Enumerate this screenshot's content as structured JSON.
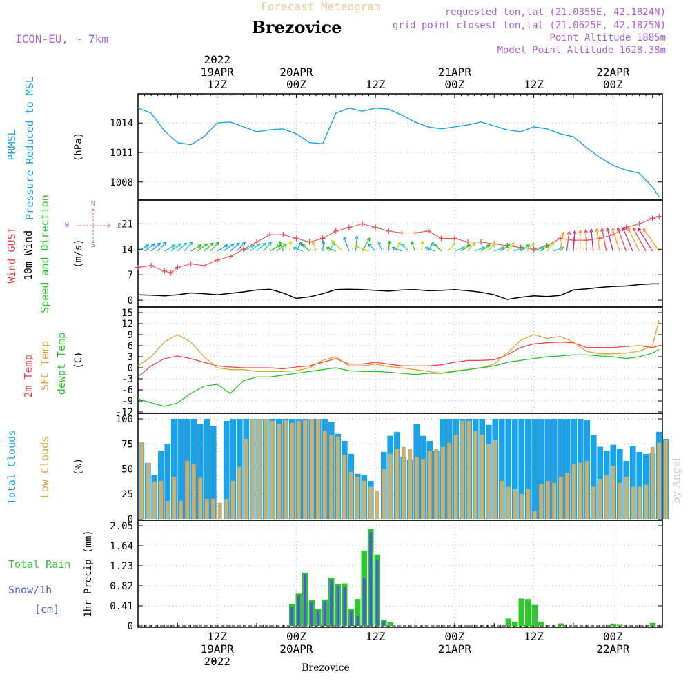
{
  "header": {
    "forecast_label": "Forecast Meteogram",
    "station": "Brezovice",
    "model": "ICON-EU, ~ 7km",
    "requested": "requested lon,lat (21.0355E, 42.1824N)",
    "gridpoint": "grid point closest lon,lat (21.0625E, 42.1875N)",
    "point_altitude": "Point Altitude 1885m",
    "model_altitude": "Model Point Altitude 1628.38m",
    "footer": "Brezovice",
    "watermark": "by Angel"
  },
  "time_axis": {
    "top_year": "2022",
    "top": [
      {
        "t": 12,
        "lines": [
          "19APR",
          "12Z"
        ]
      },
      {
        "t": 24,
        "lines": [
          "20APR",
          "00Z"
        ]
      },
      {
        "t": 36,
        "lines": [
          "12Z"
        ]
      },
      {
        "t": 48,
        "lines": [
          "21APR",
          "00Z"
        ]
      },
      {
        "t": 60,
        "lines": [
          "12Z"
        ]
      },
      {
        "t": 72,
        "lines": [
          "22APR",
          "00Z"
        ]
      }
    ],
    "bottom": [
      {
        "t": 12,
        "lines": [
          "12Z",
          "19APR",
          "2022"
        ]
      },
      {
        "t": 24,
        "lines": [
          "00Z",
          "20APR"
        ]
      },
      {
        "t": 36,
        "lines": [
          "12Z"
        ]
      },
      {
        "t": 48,
        "lines": [
          "00Z",
          "21APR"
        ]
      },
      {
        "t": 60,
        "lines": [
          "12Z"
        ]
      },
      {
        "t": 72,
        "lines": [
          "00Z",
          "22APR"
        ]
      }
    ]
  },
  "colors": {
    "pressure": "#1aa3ea",
    "gust": "#f04848",
    "wind": "#000000",
    "temp": "#f04848",
    "sfc": "#e0a33a",
    "dew": "#27c627",
    "total_clouds": "#1aa3ea",
    "low_clouds": "#c9b070",
    "rain": "#2ec82e",
    "snow": "#4a5ae0",
    "dir_label": "#b060d0"
  },
  "chart_data": [
    {
      "type": "line",
      "labels": [
        "PRMSL",
        "Pressure Reduced to MSL"
      ],
      "ylabel": "(hPa)",
      "yticks": [
        1008,
        1011,
        1014
      ],
      "ylim": [
        1006.3,
        1016.4
      ],
      "series": [
        {
          "x": [
            0,
            2,
            4,
            6,
            8,
            10,
            12,
            14,
            16,
            18,
            20,
            22,
            24,
            26,
            28,
            30,
            32,
            34,
            36,
            38,
            40,
            42,
            44,
            46,
            48,
            50,
            52,
            54,
            56,
            58,
            60,
            62,
            64,
            66,
            68,
            70,
            72,
            74,
            76,
            78,
            79
          ],
          "values": [
            1015.5,
            1015.0,
            1013.2,
            1012.0,
            1011.8,
            1012.6,
            1014.0,
            1014.1,
            1013.6,
            1013.1,
            1013.3,
            1013.4,
            1012.9,
            1012.0,
            1011.9,
            1015.0,
            1015.5,
            1015.2,
            1015.5,
            1015.4,
            1014.8,
            1014.1,
            1013.6,
            1013.4,
            1013.6,
            1013.8,
            1014.1,
            1013.7,
            1013.3,
            1013.1,
            1013.6,
            1013.4,
            1012.9,
            1012.6,
            1011.5,
            1010.5,
            1009.7,
            1009.2,
            1008.9,
            1007.5,
            1006.5
          ]
        }
      ]
    },
    {
      "type": "line",
      "labels": [
        "Wind GUST",
        "10m Wind",
        "Speed and Direction"
      ],
      "ylabel": "(m/s)",
      "yticks": [
        0,
        7,
        14,
        21
      ],
      "ylim": [
        -1.5,
        26
      ],
      "direction_key": {
        "n": "N",
        "s": "S",
        "e": "E",
        "w": "W"
      },
      "gust": {
        "x": [
          0,
          2,
          4,
          5,
          6,
          8,
          10,
          12,
          14,
          16,
          18,
          20,
          22,
          24,
          26,
          28,
          30,
          32,
          34,
          36,
          38,
          40,
          42,
          44,
          46,
          48,
          50,
          52,
          54,
          56,
          58,
          60,
          62,
          64,
          66,
          68,
          70,
          72,
          74,
          76,
          78,
          79
        ],
        "values": [
          9,
          9.5,
          8,
          7.5,
          9,
          10,
          9.5,
          11,
          12,
          14,
          16,
          18,
          18,
          17,
          16,
          17,
          19,
          20,
          21,
          20,
          19,
          18.5,
          18.5,
          19,
          17,
          17,
          16,
          16,
          15.5,
          15,
          14.5,
          14,
          15,
          17,
          16.5,
          16.5,
          17,
          18,
          20,
          21,
          22.5,
          23
        ]
      },
      "wind": {
        "x": [
          0,
          2,
          4,
          6,
          8,
          10,
          12,
          14,
          16,
          18,
          20,
          22,
          24,
          26,
          28,
          30,
          32,
          34,
          36,
          38,
          40,
          42,
          44,
          46,
          48,
          50,
          52,
          54,
          56,
          58,
          60,
          62,
          64,
          66,
          68,
          70,
          72,
          74,
          76,
          78,
          79
        ],
        "values": [
          1.5,
          1.4,
          1.2,
          1.5,
          2.0,
          1.8,
          1.5,
          1.9,
          2.3,
          2.8,
          3.0,
          2.0,
          0.5,
          0.9,
          1.8,
          2.9,
          3.0,
          2.9,
          2.7,
          2.5,
          2.8,
          2.9,
          2.6,
          2.7,
          2.9,
          2.6,
          2.2,
          1.5,
          0.2,
          0.8,
          1.2,
          1.0,
          1.3,
          2.8,
          3.1,
          3.5,
          3.8,
          3.9,
          4.3,
          4.5,
          4.5
        ]
      }
    },
    {
      "type": "line",
      "labels": [
        "2m Temp",
        "SFC Temp",
        "dewpt Temp"
      ],
      "ylabel": "(C)",
      "yticks": [
        -12,
        -9,
        -6,
        -3,
        0,
        3,
        6,
        9,
        12,
        15
      ],
      "ylim": [
        -12,
        15
      ],
      "series": [
        {
          "name": "2m Temp",
          "x": [
            0,
            2,
            4,
            6,
            8,
            10,
            12,
            14,
            16,
            18,
            20,
            22,
            24,
            26,
            28,
            30,
            32,
            34,
            36,
            38,
            40,
            42,
            44,
            46,
            48,
            50,
            52,
            54,
            56,
            58,
            60,
            62,
            64,
            66,
            68,
            70,
            72,
            74,
            76,
            78,
            79
          ],
          "values": [
            -2.5,
            0.5,
            2.5,
            3.2,
            2.5,
            1.5,
            0.5,
            0.2,
            0,
            0,
            0,
            -0.3,
            0.2,
            0.5,
            1.5,
            2.5,
            1.0,
            1.0,
            1.5,
            1.0,
            0.5,
            0.5,
            0.5,
            0.8,
            1.5,
            2.0,
            2.0,
            2.2,
            3.5,
            5.5,
            6.5,
            6.8,
            7.0,
            6.8,
            5.5,
            5.5,
            5.5,
            5.8,
            6.0,
            5.5,
            6.0
          ]
        },
        {
          "name": "SFC Temp",
          "x": [
            0,
            2,
            4,
            6,
            8,
            10,
            12,
            14,
            16,
            18,
            20,
            22,
            24,
            26,
            28,
            30,
            32,
            34,
            36,
            38,
            40,
            42,
            44,
            46,
            48,
            50,
            52,
            54,
            56,
            58,
            60,
            62,
            64,
            66,
            68,
            70,
            72,
            74,
            76,
            78,
            79
          ],
          "values": [
            0.5,
            3,
            7,
            9,
            7,
            3,
            0,
            -0.5,
            -0.5,
            -1,
            -1,
            -1,
            -0.8,
            0,
            2.0,
            3.0,
            0.5,
            0.5,
            1.0,
            0.3,
            0,
            -0.5,
            -1,
            -1.5,
            -0.8,
            -0.5,
            0,
            1,
            4,
            7.5,
            9,
            8,
            8.5,
            7,
            4.5,
            3.8,
            3.8,
            4,
            4.5,
            6,
            13
          ]
        },
        {
          "name": "dewpt Temp",
          "x": [
            0,
            2,
            4,
            6,
            8,
            10,
            12,
            14,
            16,
            18,
            20,
            22,
            24,
            26,
            28,
            30,
            32,
            34,
            36,
            38,
            40,
            42,
            44,
            46,
            48,
            50,
            52,
            54,
            56,
            58,
            60,
            62,
            64,
            66,
            68,
            70,
            72,
            74,
            76,
            78,
            79
          ],
          "values": [
            -8.5,
            -9.5,
            -10.5,
            -9.5,
            -7,
            -5,
            -4.5,
            -7,
            -3.5,
            -2.5,
            -2.5,
            -2,
            -1.5,
            -1,
            -0.5,
            0,
            -0.8,
            -1,
            -1,
            -1.2,
            -1.5,
            -1.8,
            -1.5,
            -1.5,
            -1,
            -0.5,
            0,
            0.5,
            1.5,
            2.0,
            2.5,
            3.0,
            3.2,
            3.5,
            3.5,
            3.2,
            3.0,
            2.5,
            3.0,
            4.0,
            5.0
          ]
        }
      ]
    },
    {
      "type": "bar",
      "labels": [
        "Total Clouds",
        "Low Clouds"
      ],
      "ylabel": "(%)",
      "yticks": [
        0,
        25,
        50,
        75,
        100
      ],
      "ylim": [
        0,
        100
      ],
      "total": [
        77,
        56,
        44,
        68,
        75,
        100,
        100,
        100,
        100,
        95,
        100,
        93,
        0,
        98,
        100,
        100,
        100,
        100,
        100,
        100,
        100,
        100,
        100,
        100,
        100,
        100,
        100,
        100,
        100,
        97,
        85,
        78,
        65,
        45,
        44,
        38,
        0,
        67,
        83,
        87,
        62,
        59,
        95,
        83,
        78,
        68,
        100,
        100,
        100,
        100,
        100,
        100,
        100,
        94,
        100,
        100,
        100,
        100,
        100,
        100,
        100,
        100,
        100,
        100,
        100,
        100,
        100,
        100,
        99,
        84,
        72,
        68,
        74,
        70,
        58,
        73,
        67,
        65,
        66,
        87,
        80
      ],
      "low": [
        77,
        56,
        37,
        38,
        18,
        42,
        18,
        58,
        55,
        41,
        20,
        20,
        16,
        20,
        38,
        52,
        80,
        100,
        100,
        100,
        98,
        95,
        99,
        96,
        98,
        99,
        100,
        100,
        88,
        84,
        82,
        64,
        47,
        42,
        38,
        32,
        28,
        50,
        65,
        70,
        72,
        70,
        62,
        60,
        68,
        70,
        72,
        76,
        84,
        98,
        98,
        88,
        84,
        75,
        79,
        38,
        32,
        30,
        25,
        30,
        8,
        35,
        38,
        36,
        42,
        46,
        55,
        56,
        58,
        32,
        40,
        44,
        53,
        36,
        42,
        32,
        32,
        34,
        72,
        76,
        79
      ]
    },
    {
      "type": "bar",
      "labels": [
        "Total  Rain",
        "Snow/1h",
        "[cm]"
      ],
      "ylabel": "1hr Precip (mm)",
      "yticks": [
        0,
        0.41,
        0.82,
        1.23,
        1.64,
        2.05
      ],
      "ylim": [
        0,
        2.05
      ],
      "rain_x": [
        23,
        24,
        25,
        26,
        27,
        28,
        29,
        30,
        31,
        32,
        33,
        34,
        35,
        36,
        37,
        38,
        39,
        40,
        56,
        57,
        58,
        59,
        60,
        61,
        62,
        64,
        72,
        73,
        78
      ],
      "rain": [
        0.45,
        0.66,
        1.09,
        0.53,
        0.35,
        0.54,
        0.99,
        0.86,
        0.87,
        0.35,
        0.55,
        1.54,
        1.98,
        1.46,
        0.12,
        0.07,
        0,
        0,
        0.15,
        0.08,
        0.56,
        0.55,
        0.43,
        0.08,
        0,
        0.05,
        0.03,
        0.02,
        0.06
      ],
      "snow_x": [
        23,
        24,
        25,
        26,
        27,
        28,
        29,
        30,
        31,
        32,
        33,
        34,
        35,
        36,
        37
      ],
      "snow": [
        0.4,
        0.62,
        1.06,
        0.48,
        0.3,
        0.5,
        0.95,
        0.82,
        0.8,
        0.3,
        0.2,
        0.98,
        1.92,
        1.36,
        0.1
      ]
    }
  ]
}
